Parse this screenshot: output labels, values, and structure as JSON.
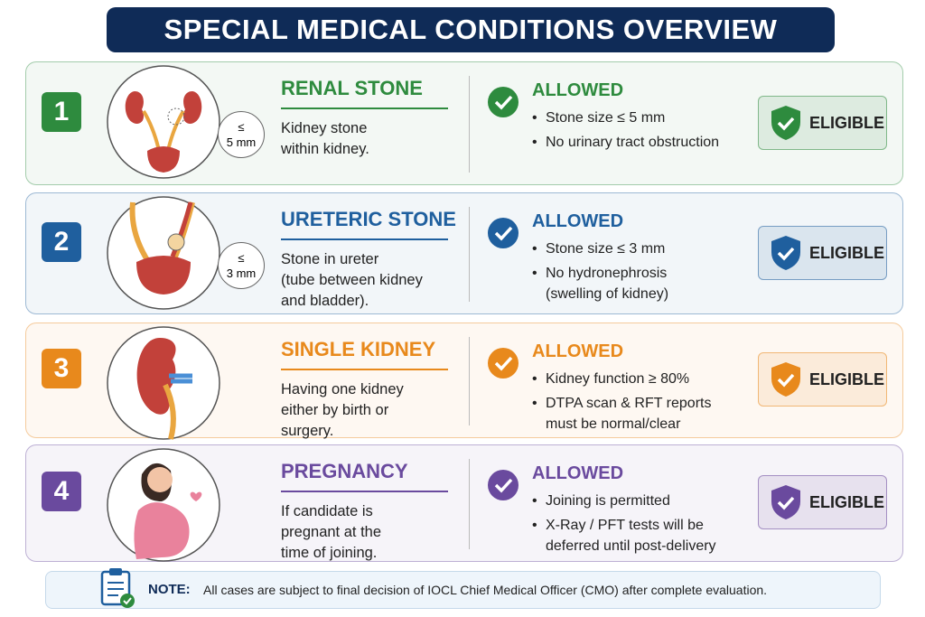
{
  "header": {
    "title": "SPECIAL MEDICAL CONDITIONS OVERVIEW"
  },
  "cards": [
    {
      "number": "1",
      "title": "RENAL STONE",
      "color": "#2e8b3e",
      "illustration": "kidneys",
      "size_label": [
        "≤",
        "5 mm"
      ],
      "description": [
        "Kidney stone",
        "within kidney."
      ],
      "status": "ALLOWED",
      "bullets": [
        [
          "Stone size ≤ 5 mm"
        ],
        [
          "No urinary tract obstruction"
        ]
      ],
      "badge": "ELIGIBLE"
    },
    {
      "number": "2",
      "title": "URETERIC STONE",
      "color": "#1f5f9e",
      "illustration": "ureter",
      "size_label": [
        "≤",
        "3 mm"
      ],
      "description": [
        "Stone in ureter",
        "(tube between kidney",
        "and bladder)."
      ],
      "status": "ALLOWED",
      "bullets": [
        [
          "Stone size ≤ 3 mm"
        ],
        [
          "No hydronephrosis",
          "(swelling of kidney)"
        ]
      ],
      "badge": "ELIGIBLE"
    },
    {
      "number": "3",
      "title": "SINGLE KIDNEY",
      "color": "#e8891c",
      "illustration": "kidney",
      "description": [
        "Having one kidney",
        "either by birth or",
        "surgery."
      ],
      "status": "ALLOWED",
      "bullets": [
        [
          "Kidney function ≥ 80%"
        ],
        [
          "DTPA scan & RFT reports",
          "must be normal/clear"
        ]
      ],
      "badge": "ELIGIBLE"
    },
    {
      "number": "4",
      "title": "PREGNANCY",
      "color": "#6a4a9e",
      "illustration": "pregnant",
      "description": [
        "If candidate is",
        "pregnant at the",
        "time of joining."
      ],
      "status": "ALLOWED",
      "bullets": [
        [
          "Joining is permitted"
        ],
        [
          "X-Ray / PFT tests will be",
          "deferred until post-delivery"
        ]
      ],
      "badge": "ELIGIBLE"
    }
  ],
  "note": {
    "label": "NOTE:",
    "text": "All cases are subject to final decision of IOCL Chief Medical Officer (CMO) after complete evaluation."
  }
}
